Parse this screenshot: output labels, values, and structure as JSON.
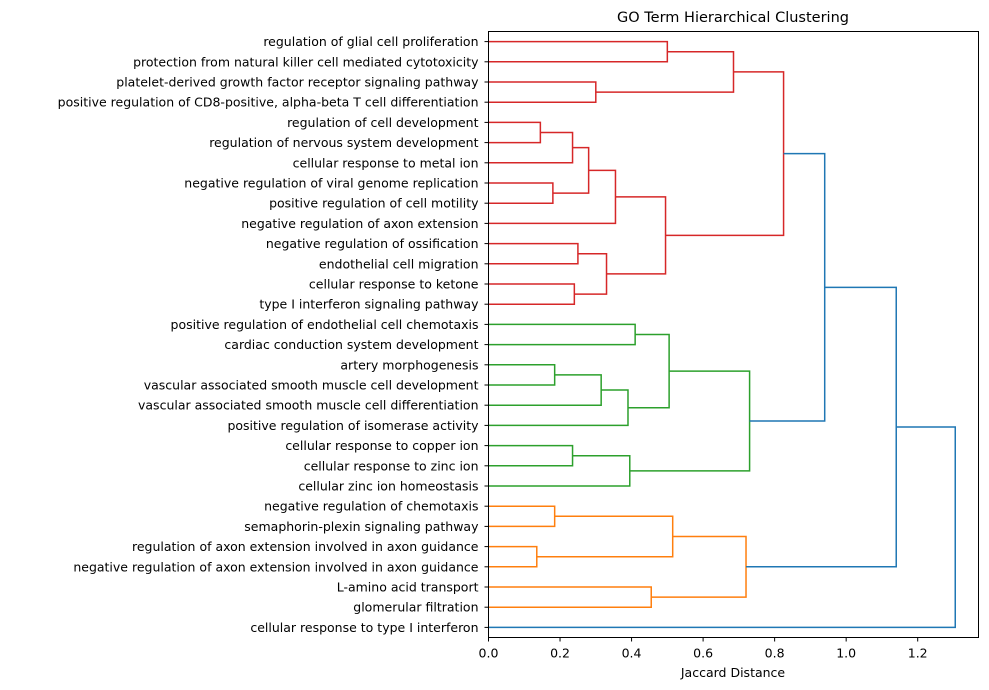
{
  "chart_data": {
    "type": "dendrogram",
    "orientation": "horizontal",
    "title": "GO Term Hierarchical Clustering",
    "xlabel": "Jaccard Distance",
    "ylabel": "",
    "xlim": [
      0,
      1.37
    ],
    "xticks": [
      0.0,
      0.2,
      0.4,
      0.6,
      0.8,
      1.0,
      1.2
    ],
    "xtick_labels": [
      "0.0",
      "0.2",
      "0.4",
      "0.6",
      "0.8",
      "1.0",
      "1.2"
    ],
    "leaves": [
      "regulation of glial cell proliferation",
      "protection from natural killer cell mediated cytotoxicity",
      "platelet-derived growth factor receptor signaling pathway",
      "positive regulation of CD8-positive, alpha-beta T cell differentiation",
      "regulation of cell development",
      "regulation of nervous system development",
      "cellular response to metal ion",
      "negative regulation of viral genome replication",
      "positive regulation of cell motility",
      "negative regulation of axon extension",
      "negative regulation of ossification",
      "endothelial cell migration",
      "cellular response to ketone",
      "type I interferon signaling pathway",
      "positive regulation of endothelial cell chemotaxis",
      "cardiac conduction system development",
      "artery morphogenesis",
      "vascular associated smooth muscle cell development",
      "vascular associated smooth muscle cell differentiation",
      "positive regulation of isomerase activity",
      "cellular response to copper ion",
      "cellular response to zinc ion",
      "cellular zinc ion homeostasis",
      "negative regulation of chemotaxis",
      "semaphorin-plexin signaling pathway",
      "regulation of axon extension involved in axon guidance",
      "negative regulation of axon extension involved in axon guidance",
      "L-amino acid transport",
      "glomerular filtration",
      "cellular response to type I interferon"
    ],
    "cluster_colors": {
      "red": "#d62728",
      "green": "#2ca02c",
      "orange": "#ff7f0e",
      "blue": "#1f77b4"
    },
    "merges": [
      {
        "id": "n1",
        "children": [
          "L0",
          "L1"
        ],
        "height": 0.5,
        "color": "red"
      },
      {
        "id": "n2",
        "children": [
          "L2",
          "L3"
        ],
        "height": 0.3,
        "color": "red"
      },
      {
        "id": "n3",
        "children": [
          "n1",
          "n2"
        ],
        "height": 0.685,
        "color": "red"
      },
      {
        "id": "n4",
        "children": [
          "L4",
          "L5"
        ],
        "height": 0.145,
        "color": "red"
      },
      {
        "id": "n5",
        "children": [
          "n4",
          "L6"
        ],
        "height": 0.235,
        "color": "red"
      },
      {
        "id": "n6",
        "children": [
          "L7",
          "L8"
        ],
        "height": 0.18,
        "color": "red"
      },
      {
        "id": "n7",
        "children": [
          "n5",
          "n6"
        ],
        "height": 0.28,
        "color": "red"
      },
      {
        "id": "n8",
        "children": [
          "n7",
          "L9"
        ],
        "height": 0.355,
        "color": "red"
      },
      {
        "id": "n9",
        "children": [
          "L10",
          "L11"
        ],
        "height": 0.25,
        "color": "red"
      },
      {
        "id": "n10",
        "children": [
          "L12",
          "L13"
        ],
        "height": 0.24,
        "color": "red"
      },
      {
        "id": "n11",
        "children": [
          "n9",
          "n10"
        ],
        "height": 0.33,
        "color": "red"
      },
      {
        "id": "n12",
        "children": [
          "n8",
          "n11"
        ],
        "height": 0.495,
        "color": "red"
      },
      {
        "id": "n13",
        "children": [
          "n3",
          "n12"
        ],
        "height": 0.825,
        "color": "red"
      },
      {
        "id": "n14",
        "children": [
          "L14",
          "L15"
        ],
        "height": 0.41,
        "color": "green"
      },
      {
        "id": "n15",
        "children": [
          "L16",
          "L17"
        ],
        "height": 0.185,
        "color": "green"
      },
      {
        "id": "n16",
        "children": [
          "n15",
          "L18"
        ],
        "height": 0.315,
        "color": "green"
      },
      {
        "id": "n17",
        "children": [
          "n16",
          "L19"
        ],
        "height": 0.39,
        "color": "green"
      },
      {
        "id": "n18",
        "children": [
          "n14",
          "n17"
        ],
        "height": 0.505,
        "color": "green"
      },
      {
        "id": "n19",
        "children": [
          "L20",
          "L21"
        ],
        "height": 0.235,
        "color": "green"
      },
      {
        "id": "n20",
        "children": [
          "n19",
          "L22"
        ],
        "height": 0.395,
        "color": "green"
      },
      {
        "id": "n21",
        "children": [
          "n18",
          "n20"
        ],
        "height": 0.73,
        "color": "green"
      },
      {
        "id": "n22",
        "children": [
          "n13",
          "n21"
        ],
        "height": 0.94,
        "color": "blue"
      },
      {
        "id": "n23",
        "children": [
          "L23",
          "L24"
        ],
        "height": 0.185,
        "color": "orange"
      },
      {
        "id": "n24",
        "children": [
          "L25",
          "L26"
        ],
        "height": 0.135,
        "color": "orange"
      },
      {
        "id": "n25",
        "children": [
          "n23",
          "n24"
        ],
        "height": 0.515,
        "color": "orange"
      },
      {
        "id": "n26",
        "children": [
          "L27",
          "L28"
        ],
        "height": 0.455,
        "color": "orange"
      },
      {
        "id": "n27",
        "children": [
          "n25",
          "n26"
        ],
        "height": 0.72,
        "color": "orange"
      },
      {
        "id": "n28",
        "children": [
          "n22",
          "n27"
        ],
        "height": 1.14,
        "color": "blue"
      },
      {
        "id": "n29",
        "children": [
          "n28",
          "L29"
        ],
        "height": 1.305,
        "color": "blue"
      }
    ],
    "leaf_link_color": {
      "L29": "blue"
    }
  }
}
